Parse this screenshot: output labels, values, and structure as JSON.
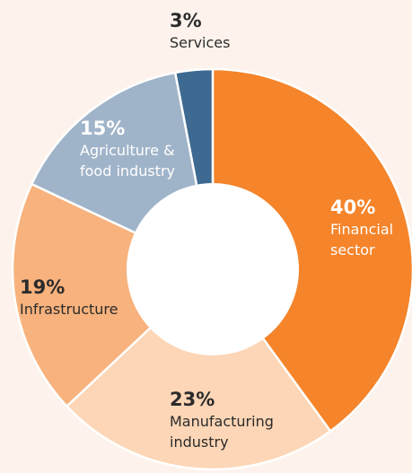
{
  "chart_data": {
    "type": "donut",
    "categories": [
      "Financial sector",
      "Manufacturing industry",
      "Infrastructure",
      "Agriculture & food industry",
      "Services"
    ],
    "values": [
      40,
      23,
      19,
      15,
      3
    ],
    "value_labels": [
      "40%",
      "23%",
      "19%",
      "15%",
      "3%"
    ],
    "colors": [
      "#f5842a",
      "#fcd6b6",
      "#f8b27d",
      "#a0b4c9",
      "#3e6a91"
    ]
  }
}
